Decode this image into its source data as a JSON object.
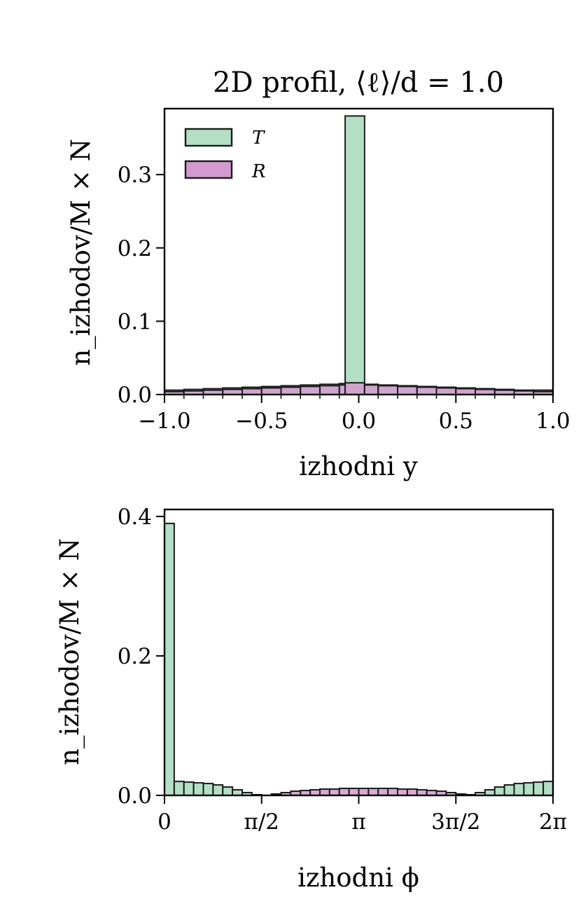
{
  "colors": {
    "T": "#b3e0c5",
    "R": "#d39ad0",
    "edge": "#1b1b1b"
  },
  "chart_data": [
    {
      "type": "bar",
      "title": "2D profil, ⟨ℓ⟩/d = 1.0",
      "xlabel": "izhodni y",
      "ylabel": "n_izhodov/M × N",
      "xlim": [
        -1.0,
        1.0
      ],
      "ylim": [
        0,
        0.39
      ],
      "xticks": [
        -1.0,
        -0.5,
        0.0,
        0.5,
        1.0
      ],
      "xtick_labels": [
        "−1.0",
        "−0.5",
        "0.0",
        "0.5",
        "1.0"
      ],
      "yticks": [
        0.0,
        0.1,
        0.2,
        0.3
      ],
      "ytick_labels": [
        "0.0",
        "0.1",
        "0.2",
        "0.3"
      ],
      "legend": {
        "position": "top-left",
        "entries": [
          "T",
          "R"
        ]
      },
      "bin_edges": [
        -1.0,
        -0.9,
        -0.8,
        -0.7,
        -0.6,
        -0.5,
        -0.4,
        -0.3,
        -0.2,
        -0.1,
        -0.07,
        0.03,
        0.1,
        0.2,
        0.3,
        0.4,
        0.5,
        0.6,
        0.7,
        0.8,
        0.9,
        1.0
      ],
      "series": [
        {
          "name": "T",
          "values": [
            0.006,
            0.007,
            0.008,
            0.009,
            0.01,
            0.011,
            0.012,
            0.013,
            0.014,
            0.015,
            0.38,
            0.014,
            0.013,
            0.012,
            0.011,
            0.01,
            0.009,
            0.008,
            0.007,
            0.006,
            0.006
          ]
        },
        {
          "name": "R",
          "values": [
            0.004,
            0.005,
            0.006,
            0.007,
            0.008,
            0.009,
            0.01,
            0.011,
            0.012,
            0.013,
            0.016,
            0.013,
            0.012,
            0.011,
            0.01,
            0.009,
            0.008,
            0.007,
            0.006,
            0.005,
            0.004
          ]
        }
      ]
    },
    {
      "type": "bar",
      "title": "",
      "xlabel": "izhodni ϕ",
      "ylabel": "n_izhodov/M × N",
      "xlim": [
        0,
        6.2832
      ],
      "ylim": [
        0,
        0.41
      ],
      "xticks": [
        0,
        1.5708,
        3.1416,
        4.7124,
        6.2832
      ],
      "xtick_labels": [
        "0",
        "π/2",
        "π",
        "3π/2",
        "2π"
      ],
      "yticks": [
        0.0,
        0.2,
        0.4
      ],
      "ytick_labels": [
        "0.0",
        "0.2",
        "0.4"
      ],
      "bins": 40,
      "series": [
        {
          "name": "T",
          "values": [
            0.39,
            0.02,
            0.019,
            0.018,
            0.017,
            0.015,
            0.012,
            0.008,
            0.004,
            0.001,
            0.0,
            0.0,
            0.0,
            0.0,
            0.0,
            0.0,
            0.0,
            0.0,
            0.0,
            0.0,
            0.0,
            0.0,
            0.0,
            0.0,
            0.0,
            0.0,
            0.0,
            0.0,
            0.0,
            0.0,
            0.0,
            0.001,
            0.004,
            0.008,
            0.012,
            0.015,
            0.017,
            0.018,
            0.019,
            0.02
          ]
        },
        {
          "name": "R",
          "values": [
            0.0,
            0.0,
            0.0,
            0.0,
            0.0,
            0.0,
            0.0,
            0.0,
            0.0,
            0.0,
            0.0,
            0.002,
            0.004,
            0.006,
            0.007,
            0.008,
            0.009,
            0.009,
            0.01,
            0.01,
            0.01,
            0.01,
            0.01,
            0.01,
            0.009,
            0.009,
            0.008,
            0.007,
            0.006,
            0.004,
            0.002,
            0.0,
            0.0,
            0.0,
            0.0,
            0.0,
            0.0,
            0.0,
            0.0,
            0.0
          ]
        }
      ]
    }
  ]
}
